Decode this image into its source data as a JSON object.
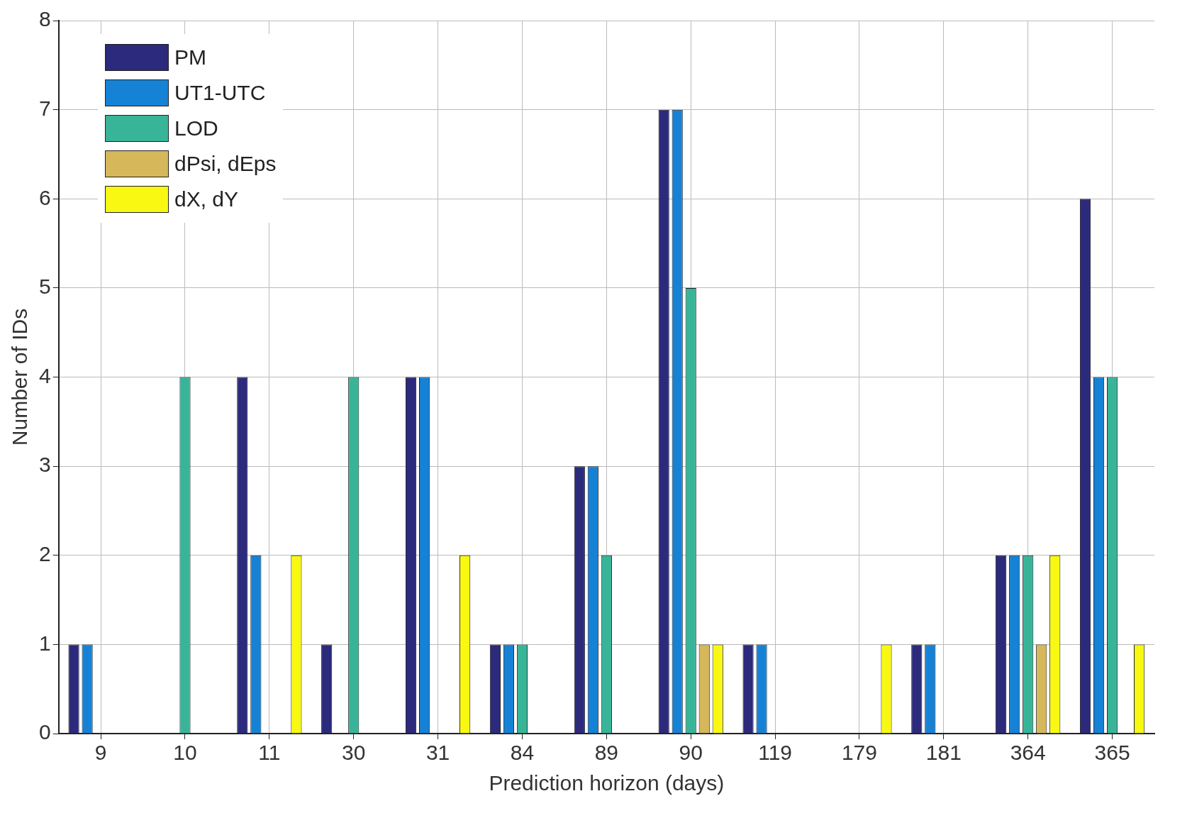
{
  "chart_data": {
    "type": "bar",
    "xlabel": "Prediction horizon (days)",
    "ylabel": "Number of IDs",
    "categories": [
      "9",
      "10",
      "11",
      "30",
      "31",
      "84",
      "89",
      "90",
      "119",
      "179",
      "181",
      "364",
      "365"
    ],
    "series": [
      {
        "name": "PM",
        "color": "#2c2a7c",
        "values": [
          1,
          0,
          4,
          1,
          4,
          1,
          3,
          7,
          1,
          0,
          1,
          2,
          6
        ]
      },
      {
        "name": "UT1-UTC",
        "color": "#1582d6",
        "values": [
          1,
          0,
          2,
          0,
          4,
          1,
          3,
          7,
          1,
          0,
          1,
          2,
          4
        ]
      },
      {
        "name": "LOD",
        "color": "#38b598",
        "values": [
          0,
          4,
          0,
          4,
          0,
          1,
          2,
          5,
          0,
          0,
          0,
          2,
          4
        ]
      },
      {
        "name": "dPsi, dEps",
        "color": "#d6b75a",
        "values": [
          0,
          0,
          0,
          0,
          0,
          0,
          0,
          1,
          0,
          0,
          0,
          1,
          0
        ]
      },
      {
        "name": "dX, dY",
        "color": "#f8f812",
        "values": [
          0,
          0,
          2,
          0,
          2,
          0,
          0,
          1,
          0,
          1,
          0,
          2,
          1
        ]
      }
    ],
    "ylim": [
      0,
      8
    ],
    "yticks": [
      0,
      1,
      2,
      3,
      4,
      5,
      6,
      7,
      8
    ],
    "grid": true,
    "legend": "top left"
  }
}
